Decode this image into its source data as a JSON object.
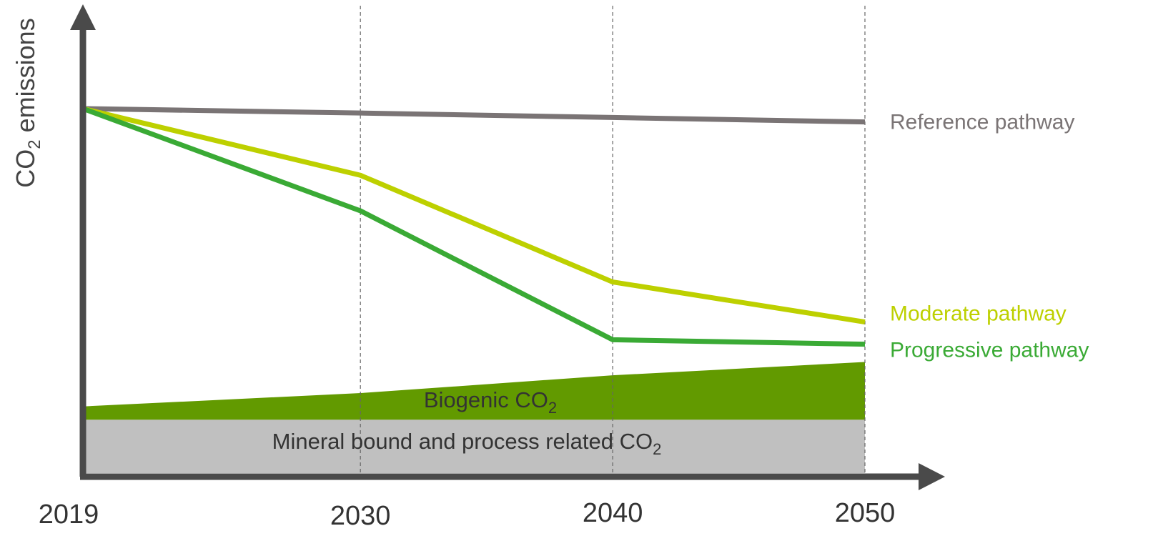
{
  "chart_data": {
    "type": "line",
    "ylabel": {
      "main": "CO",
      "sub": "2",
      "rest": " emissions"
    },
    "x": [
      "2019",
      "2030",
      "2040",
      "2050"
    ],
    "xlim": [
      2019,
      2050
    ],
    "ylim": [
      0,
      100
    ],
    "grid": "vertical dashed at 2030, 2040, 2050",
    "series": [
      {
        "name": "Reference pathway",
        "color": "#7a7475",
        "values": [
          82,
          81,
          80,
          79
        ]
      },
      {
        "name": "Moderate pathway",
        "color": "#bdd000",
        "values": [
          82,
          67,
          43,
          34
        ]
      },
      {
        "name": "Progressive pathway",
        "color": "#3aaa35",
        "values": [
          82,
          59,
          30,
          29
        ]
      }
    ],
    "areas": [
      {
        "label": "Biogenic CO",
        "label_sub": "2",
        "color": "#629a00",
        "lower": [
          12,
          12,
          12,
          12
        ],
        "upper": [
          15,
          18,
          22,
          25
        ]
      },
      {
        "label": "Mineral bound and process related CO",
        "label_sub": "2",
        "color": "#c0c0c0",
        "lower": [
          0,
          0,
          0,
          0
        ],
        "upper": [
          12,
          12,
          12,
          12
        ]
      }
    ]
  }
}
